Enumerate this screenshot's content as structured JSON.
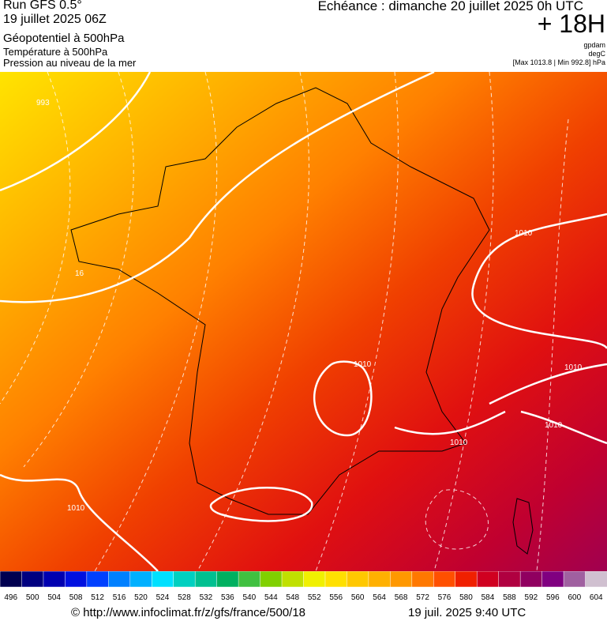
{
  "header": {
    "run": "Run GFS 0.5°",
    "date": "19 juillet 2025 06Z",
    "field": "Géopotentiel à 500hPa",
    "temp": "Température à 500hPa",
    "pressure": "Pression au niveau de la mer",
    "valid": "Echéance : dimanche 20 juillet 2025 0h UTC",
    "step": "+ 18H",
    "unit1": "gpdam",
    "unit2": "degC",
    "range": "[Max 1013.8 | Min 992.8] hPa"
  },
  "map": {
    "labels": [
      "993",
      "1010",
      "1010",
      "1010",
      "1010",
      "1010",
      "1010",
      "16"
    ]
  },
  "scale": {
    "labels": [
      496,
      500,
      504,
      508,
      512,
      516,
      520,
      524,
      528,
      532,
      536,
      540,
      544,
      548,
      552,
      556,
      560,
      564,
      568,
      572,
      576,
      580,
      584,
      588,
      592,
      596,
      600,
      604
    ],
    "colors": [
      "#000050",
      "#000080",
      "#0000b0",
      "#0010e0",
      "#0040ff",
      "#0080ff",
      "#00b0ff",
      "#00e0ff",
      "#00d0c0",
      "#00c090",
      "#00b060",
      "#40c040",
      "#80d000",
      "#c0e000",
      "#f0f000",
      "#ffe000",
      "#ffc800",
      "#ffb000",
      "#ff9800",
      "#ff7800",
      "#ff5000",
      "#f02000",
      "#d00020",
      "#b00040",
      "#900060",
      "#800080",
      "#a060a0",
      "#d0c0d0"
    ]
  },
  "footer": {
    "source": "© http://www.infoclimat.fr/z/gfs/france/500/18",
    "time": "19 juil. 2025  9:40 UTC"
  }
}
